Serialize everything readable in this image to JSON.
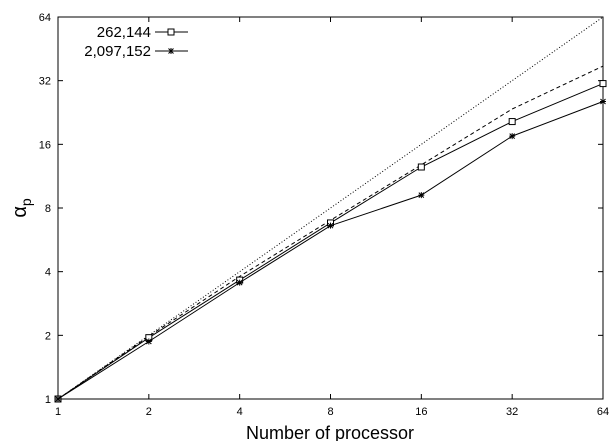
{
  "chart_data": {
    "type": "line",
    "xscale": "log2",
    "yscale": "log2",
    "xlabel": "Number of processor",
    "ylabel": "α",
    "ylabel_subscript": "p",
    "xlim": [
      1,
      64
    ],
    "ylim": [
      1,
      64
    ],
    "x_ticks": [
      1,
      2,
      4,
      8,
      16,
      32,
      64
    ],
    "y_ticks": [
      1,
      2,
      4,
      8,
      16,
      32,
      64
    ],
    "grid": false,
    "legend_position": "top-left",
    "series": [
      {
        "name": "",
        "style": "dotted",
        "marker": "none",
        "x": [
          1,
          64
        ],
        "y": [
          1,
          64
        ]
      },
      {
        "name": "",
        "style": "dashed",
        "marker": "none",
        "x": [
          1,
          2,
          4,
          8,
          16,
          32,
          64
        ],
        "y": [
          1,
          1.98,
          3.8,
          7.0,
          12.8,
          23.5,
          37.5
        ]
      },
      {
        "name": "262,144",
        "style": "solid",
        "marker": "square",
        "x": [
          1,
          2,
          4,
          8,
          16,
          32,
          64
        ],
        "y": [
          1,
          1.95,
          3.65,
          6.8,
          12.5,
          20.5,
          31.0
        ]
      },
      {
        "name": "2,097,152",
        "style": "solid",
        "marker": "star",
        "x": [
          1,
          2,
          4,
          8,
          16,
          32,
          64
        ],
        "y": [
          1,
          1.87,
          3.55,
          6.6,
          9.2,
          17.5,
          25.5
        ]
      }
    ]
  }
}
